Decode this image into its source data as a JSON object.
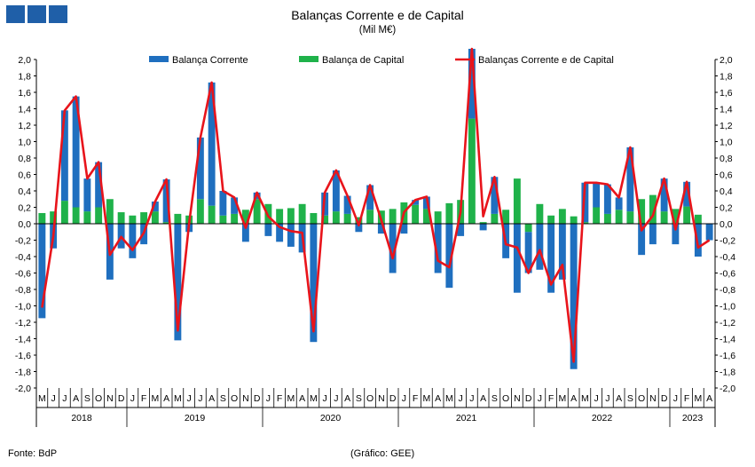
{
  "header": {
    "title": "Balanças Corrente e de Capital",
    "subtitle": "(Mil M€)"
  },
  "footer": {
    "source": "Fonte: BdP",
    "credit": "(Gráfico: GEE)"
  },
  "colors": {
    "current": "#1f6fbf",
    "capital": "#1fb24a",
    "line": "#e8141b",
    "logo": "#1f5fa8"
  },
  "chart_data": {
    "type": "bar",
    "title": "Balanças Corrente e de Capital",
    "subtitle": "(Mil M€)",
    "ylim": [
      -2.0,
      2.0
    ],
    "y_ticks": [
      "2,0",
      "1,8",
      "1,6",
      "1,4",
      "1,2",
      "1,0",
      "0,8",
      "0,6",
      "0,4",
      "0,2",
      "0,0",
      "-0,2",
      "-0,4",
      "-0,6",
      "-0,8",
      "-1,0",
      "-1,2",
      "-1,4",
      "-1,6",
      "-1,8",
      "-2,0"
    ],
    "legend": [
      "Balança Corrente",
      "Balança de Capital",
      "Balanças Corrente e de Capital"
    ],
    "legend_position": "top",
    "months": [
      "M",
      "J",
      "J",
      "A",
      "S",
      "O",
      "N",
      "D",
      "J",
      "F",
      "M",
      "A",
      "M",
      "J",
      "J",
      "A",
      "S",
      "O",
      "N",
      "D",
      "J",
      "F",
      "M",
      "A",
      "M",
      "J",
      "J",
      "A",
      "S",
      "O",
      "N",
      "D",
      "J",
      "F",
      "M",
      "A",
      "M",
      "J",
      "J",
      "A",
      "S",
      "O",
      "N",
      "D",
      "J",
      "F",
      "M",
      "A",
      "M",
      "J",
      "J",
      "A",
      "S",
      "O",
      "N",
      "D",
      "J",
      "F",
      "M",
      "A"
    ],
    "years": [
      {
        "label": "2018",
        "start": 0,
        "count": 8
      },
      {
        "label": "2019",
        "start": 8,
        "count": 12
      },
      {
        "label": "2020",
        "start": 20,
        "count": 12
      },
      {
        "label": "2021",
        "start": 32,
        "count": 12
      },
      {
        "label": "2022",
        "start": 44,
        "count": 12
      },
      {
        "label": "2023",
        "start": 56,
        "count": 4
      }
    ],
    "series": [
      {
        "name": "Balança Corrente",
        "style": "bar",
        "values": [
          -1.15,
          -0.3,
          1.1,
          1.35,
          0.4,
          0.55,
          -0.68,
          -0.3,
          -0.42,
          -0.25,
          0.12,
          0.52,
          -1.42,
          -0.1,
          0.75,
          1.5,
          0.3,
          0.2,
          -0.22,
          0.08,
          -0.15,
          -0.22,
          -0.28,
          -0.35,
          -1.44,
          0.28,
          0.5,
          0.22,
          -0.1,
          0.3,
          -0.12,
          -0.6,
          -0.12,
          0.06,
          0.15,
          -0.6,
          -0.78,
          -0.15,
          0.85,
          -0.08,
          0.45,
          -0.42,
          -0.84,
          -0.5,
          -0.56,
          -0.84,
          -0.68,
          -1.77,
          0.48,
          0.3,
          0.36,
          0.15,
          0.78,
          -0.38,
          -0.25,
          0.4,
          -0.25,
          0.3,
          -0.4,
          -0.2
        ]
      },
      {
        "name": "Balança de Capital",
        "style": "bar",
        "values": [
          0.13,
          0.15,
          0.28,
          0.2,
          0.15,
          0.2,
          0.3,
          0.14,
          0.1,
          0.14,
          0.15,
          0.02,
          0.12,
          0.1,
          0.3,
          0.22,
          0.1,
          0.12,
          0.17,
          0.3,
          0.24,
          0.18,
          0.19,
          0.24,
          0.13,
          0.1,
          0.15,
          0.12,
          0.08,
          0.17,
          0.16,
          0.18,
          0.26,
          0.23,
          0.18,
          0.15,
          0.25,
          0.29,
          1.28,
          0.02,
          0.12,
          0.17,
          0.55,
          -0.1,
          0.24,
          0.1,
          0.18,
          0.09,
          0.02,
          0.2,
          0.12,
          0.17,
          0.15,
          0.3,
          0.35,
          0.15,
          0.18,
          0.21,
          0.11,
          0.0
        ]
      },
      {
        "name": "Balanças Corrente e de Capital",
        "style": "line",
        "values": [
          -1.02,
          -0.15,
          1.38,
          1.55,
          0.55,
          0.75,
          -0.38,
          -0.16,
          -0.32,
          -0.11,
          0.27,
          0.54,
          -1.3,
          0.0,
          1.05,
          1.72,
          0.4,
          0.32,
          -0.05,
          0.38,
          0.09,
          -0.04,
          -0.09,
          -0.11,
          -1.31,
          0.38,
          0.65,
          0.34,
          -0.02,
          0.47,
          0.04,
          -0.42,
          0.14,
          0.29,
          0.33,
          -0.45,
          -0.53,
          0.14,
          2.13,
          0.09,
          0.57,
          -0.25,
          -0.29,
          -0.6,
          -0.32,
          -0.74,
          -0.5,
          -1.68,
          0.5,
          0.5,
          0.48,
          0.32,
          0.93,
          -0.08,
          0.1,
          0.55,
          -0.07,
          0.51,
          -0.29,
          -0.2
        ]
      }
    ]
  }
}
